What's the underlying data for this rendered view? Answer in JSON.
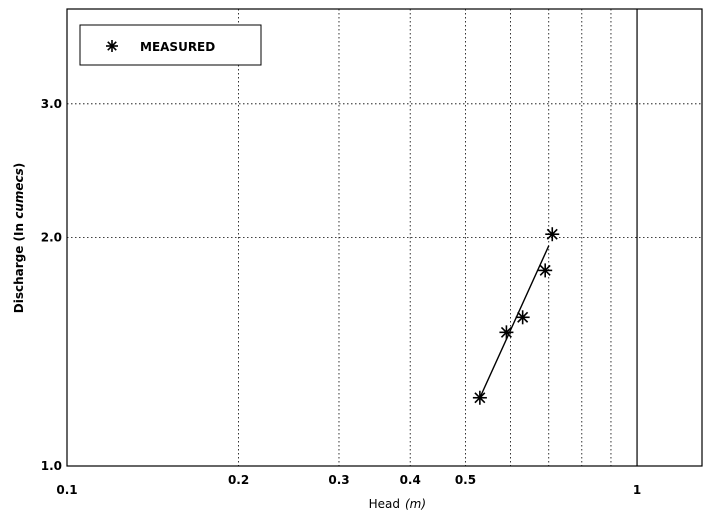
{
  "chart_data": {
    "type": "scatter",
    "xscale": "log",
    "yscale": "log",
    "xlim": [
      0.1,
      1.3
    ],
    "ylim": [
      1.0,
      4.0
    ],
    "xlabel": "Head",
    "xlabel_unit": "m",
    "ylabel": "Discharge",
    "ylabel_unit": "In cumecs",
    "x_ticks": [
      {
        "value": 0.1,
        "label": "0.1"
      },
      {
        "value": 0.2,
        "label": "0.2"
      },
      {
        "value": 0.3,
        "label": "0.3"
      },
      {
        "value": 0.4,
        "label": "0.4"
      },
      {
        "value": 0.5,
        "label": "0.5"
      },
      {
        "value": 1,
        "label": "1"
      }
    ],
    "y_ticks": [
      {
        "value": 1.0,
        "label": "1.0"
      },
      {
        "value": 2.0,
        "label": "2.0"
      },
      {
        "value": 3.0,
        "label": "3.0"
      }
    ],
    "x_minor_grid": [
      0.2,
      0.3,
      0.4,
      0.5,
      0.6,
      0.7,
      0.8,
      0.9,
      1.0
    ],
    "y_grid": [
      2.0,
      3.0
    ],
    "grid": true,
    "legend_position": "top-left",
    "series": [
      {
        "name": "MEASURED",
        "marker": "asterisk",
        "x": [
          0.53,
          0.59,
          0.63,
          0.69,
          0.71
        ],
        "y": [
          1.23,
          1.5,
          1.57,
          1.81,
          2.02
        ]
      }
    ],
    "fit_line": {
      "x": [
        0.53,
        0.7
      ],
      "y": [
        1.23,
        1.95
      ]
    }
  }
}
